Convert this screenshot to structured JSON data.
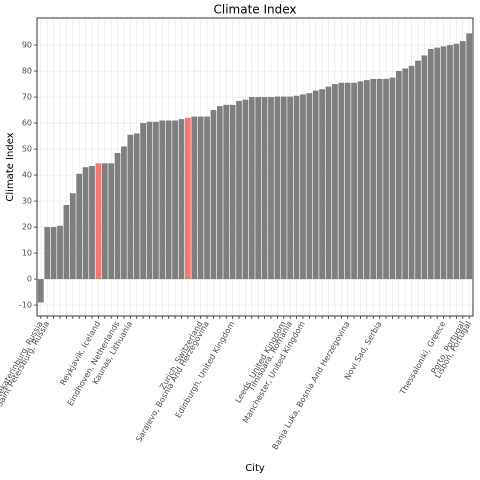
{
  "chart_data": {
    "type": "bar",
    "title": "Climate Index",
    "x_label": "City",
    "y_label": "Climate Index",
    "categories": [
      "Yekaterinburg, Russia",
      "Saint Petersburg, Russia",
      null,
      null,
      null,
      null,
      null,
      null,
      null,
      "Reykjavik, Iceland",
      null,
      null,
      "Eindhoven, Netherlands",
      null,
      "Kaunas, Lithuania",
      null,
      null,
      null,
      null,
      null,
      null,
      null,
      null,
      null,
      null,
      "Zurich, Switzerland",
      "Sarajevo, Bosnia And Herzegovina",
      null,
      null,
      null,
      "Edinburgh, United Kingdom",
      null,
      null,
      null,
      null,
      null,
      null,
      null,
      "Leeds, United Kingdom",
      "Timisoara, Romania",
      null,
      "Manchester, United Kingdom",
      null,
      null,
      null,
      null,
      null,
      null,
      "Banja Luka, Bosnia And Herzegovina",
      null,
      null,
      null,
      null,
      "Novi Sad, Serbia",
      null,
      null,
      null,
      null,
      null,
      null,
      null,
      null,
      null,
      "Thessaloniki, Greece",
      null,
      null,
      "Porto, Portugal",
      "Lisbon, Portugal"
    ],
    "values": [
      -9,
      20,
      20,
      20.5,
      28.5,
      33,
      40.5,
      43,
      43.5,
      44.5,
      44.5,
      44.5,
      48.5,
      51,
      55.5,
      56,
      60,
      60.5,
      60.5,
      61,
      61,
      61,
      61.5,
      62,
      62.5,
      62.5,
      62.5,
      65,
      66.5,
      67,
      67,
      68.5,
      69,
      70,
      70,
      70,
      70,
      70.2,
      70.2,
      70.2,
      70.5,
      71,
      71.5,
      72.5,
      73,
      74,
      75,
      75.5,
      75.5,
      75.5,
      76,
      76.5,
      77,
      77,
      77,
      77.5,
      80,
      81,
      82,
      84,
      86,
      88.5,
      89,
      89.5,
      90,
      90.5,
      91.5,
      94.5
    ],
    "color": "#7f7f7f",
    "highlight_color": "#f8766d",
    "highlight": [
      9,
      23
    ],
    "ylim": [
      -14.2,
      100.4
    ],
    "yticks": [
      -10,
      0,
      10,
      20,
      30,
      40,
      50,
      60,
      70,
      80,
      90
    ],
    "grid": true
  }
}
